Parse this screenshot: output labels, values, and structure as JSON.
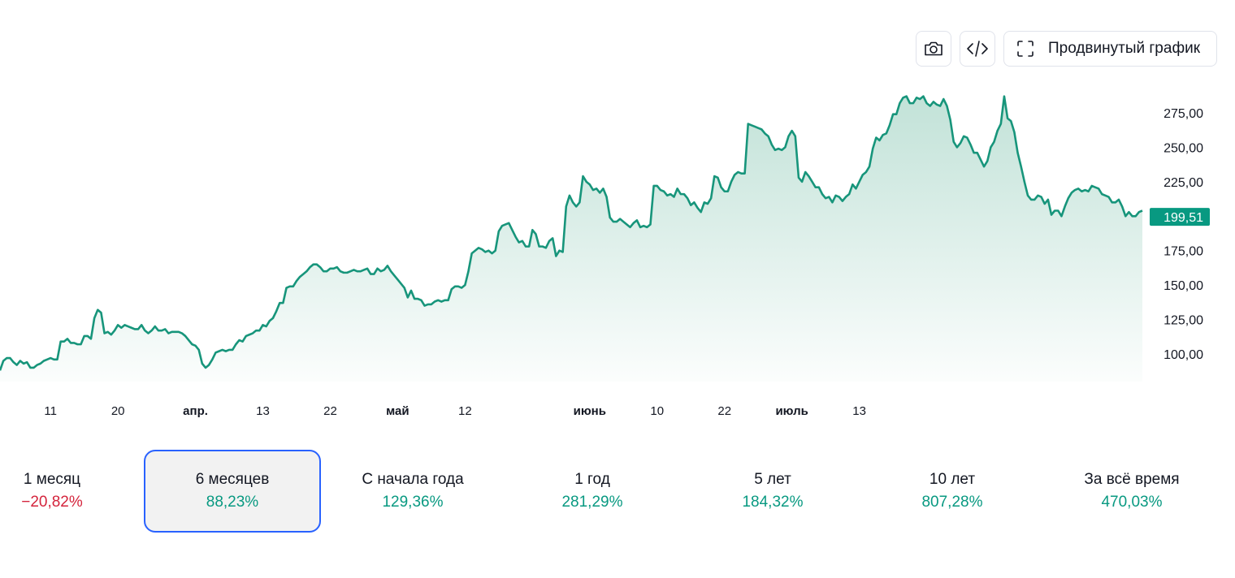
{
  "toolbar": {
    "camera_icon": "camera-icon",
    "embed_icon": "code-icon",
    "fullscreen_icon": "fullscreen-icon",
    "advanced_chart_label": "Продвинутый график"
  },
  "colors": {
    "line": "#17957b",
    "fill_top": "#b7ddd1",
    "price_label_bg": "#089981",
    "positive": "#089981",
    "negative": "#d4243c",
    "active_border": "#2962ff"
  },
  "chart_data": {
    "type": "area",
    "xlabel": "",
    "ylabel": "",
    "ylim": [
      78,
      290
    ],
    "grid": false,
    "y_ticks": [
      "275,00",
      "250,00",
      "225,00",
      "200,00",
      "175,00",
      "150,00",
      "125,00",
      "100,00"
    ],
    "y_tick_values": [
      275,
      250,
      225,
      200,
      175,
      150,
      125,
      100
    ],
    "x_ticks": [
      {
        "label": "11",
        "i": 15,
        "bold": false
      },
      {
        "label": "20",
        "i": 35,
        "bold": false
      },
      {
        "label": "апр.",
        "i": 58,
        "bold": true
      },
      {
        "label": "13",
        "i": 78,
        "bold": false
      },
      {
        "label": "22",
        "i": 98,
        "bold": false
      },
      {
        "label": "май",
        "i": 118,
        "bold": true
      },
      {
        "label": "12",
        "i": 138,
        "bold": false
      },
      {
        "label": "июнь",
        "i": 175,
        "bold": true
      },
      {
        "label": "10",
        "i": 195,
        "bold": false
      },
      {
        "label": "22",
        "i": 215,
        "bold": false
      },
      {
        "label": "июль",
        "i": 235,
        "bold": true
      },
      {
        "label": "13",
        "i": 255,
        "bold": false
      }
    ],
    "last_price_label": "199,51",
    "last_price": 199.51,
    "values": [
      88,
      95,
      97,
      97,
      94,
      92,
      95,
      93,
      94,
      90,
      90,
      92,
      93,
      95,
      96,
      97,
      96,
      96,
      109,
      109,
      111,
      108,
      108,
      107,
      107,
      113,
      113,
      111,
      126,
      132,
      130,
      115,
      116,
      114,
      117,
      121,
      119,
      121,
      120,
      119,
      118,
      118,
      121,
      117,
      115,
      117,
      120,
      117,
      117,
      118,
      115,
      116,
      116,
      116,
      115,
      113,
      110,
      107,
      106,
      103,
      93,
      90,
      92,
      96,
      101,
      102,
      103,
      102,
      103,
      103,
      107,
      110,
      109,
      113,
      114,
      115,
      117,
      117,
      121,
      120,
      124,
      126,
      131,
      137,
      137,
      148,
      149,
      149,
      153,
      156,
      158,
      160,
      163,
      165,
      165,
      163,
      160,
      160,
      162,
      162,
      163,
      160,
      159,
      159,
      160,
      161,
      160,
      160,
      161,
      162,
      158,
      158,
      162,
      160,
      161,
      164,
      160,
      157,
      154,
      151,
      148,
      141,
      146,
      140,
      140,
      139,
      135,
      136,
      136,
      138,
      139,
      138,
      139,
      139,
      147,
      149,
      149,
      148,
      150,
      160,
      173,
      175,
      177,
      176,
      174,
      175,
      173,
      175,
      189,
      193,
      194,
      195,
      190,
      185,
      181,
      182,
      178,
      178,
      190,
      187,
      178,
      178,
      177,
      182,
      184,
      171,
      175,
      174,
      207,
      215,
      210,
      207,
      210,
      229,
      225,
      223,
      219,
      220,
      217,
      220,
      214,
      199,
      196,
      196,
      198,
      196,
      194,
      192,
      195,
      197,
      192,
      193,
      192,
      194,
      222,
      222,
      219,
      218,
      215,
      216,
      214,
      220,
      216,
      216,
      213,
      208,
      210,
      206,
      203,
      210,
      209,
      213,
      229,
      228,
      221,
      218,
      218,
      225,
      230,
      232,
      231,
      231,
      267,
      266,
      265,
      264,
      263,
      260,
      258,
      252,
      248,
      249,
      248,
      250,
      258,
      262,
      258,
      228,
      225,
      232,
      229,
      225,
      221,
      221,
      216,
      213,
      214,
      210,
      215,
      214,
      211,
      214,
      216,
      223,
      220,
      225,
      230,
      232,
      236,
      249,
      257,
      255,
      259,
      260,
      266,
      274,
      274,
      282,
      286,
      287,
      282,
      282,
      286,
      285,
      287,
      282,
      280,
      283,
      281,
      280,
      285,
      280,
      270,
      254,
      250,
      253,
      258,
      257,
      252,
      246,
      246,
      241,
      236,
      240,
      250,
      254,
      262,
      267,
      287,
      271,
      269,
      261,
      246,
      236,
      225,
      215,
      212,
      212,
      215,
      214,
      209,
      212,
      201,
      204,
      204,
      200,
      207,
      213,
      217,
      219,
      220,
      218,
      219,
      218,
      222,
      221,
      220,
      216,
      215,
      214,
      210,
      210,
      212,
      207,
      200,
      203,
      200,
      200,
      203,
      204
    ],
    "series": [
      {
        "values_ref": "values"
      }
    ]
  },
  "periods": [
    {
      "label": "1 месяц",
      "value": "−20,82%",
      "sign": "neg",
      "active": false
    },
    {
      "label": "6 месяцев",
      "value": "88,23%",
      "sign": "pos",
      "active": true
    },
    {
      "label": "С начала года",
      "value": "129,36%",
      "sign": "pos",
      "active": false
    },
    {
      "label": "1 год",
      "value": "281,29%",
      "sign": "pos",
      "active": false
    },
    {
      "label": "5 лет",
      "value": "184,32%",
      "sign": "pos",
      "active": false
    },
    {
      "label": "10 лет",
      "value": "807,28%",
      "sign": "pos",
      "active": false
    },
    {
      "label": "За всё время",
      "value": "470,03%",
      "sign": "pos",
      "active": false
    }
  ]
}
